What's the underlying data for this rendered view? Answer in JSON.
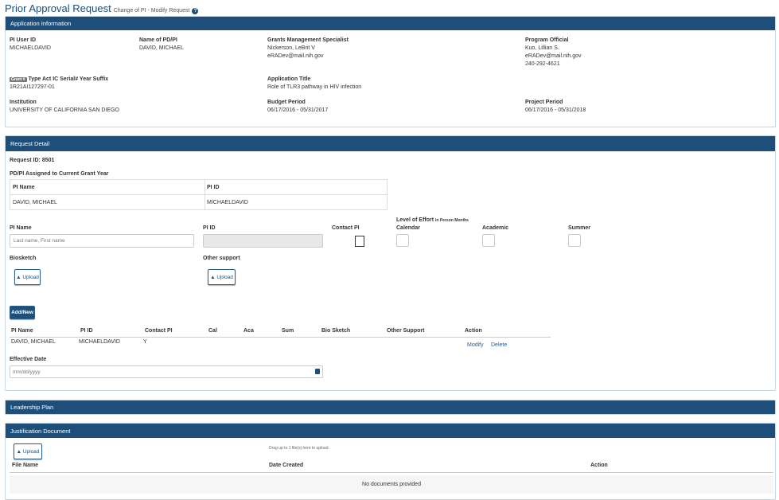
{
  "header": {
    "title": "Prior Approval Request",
    "subtitle": "Change of PI - Modify Request",
    "help_icon": "question-circle-icon"
  },
  "app_info": {
    "heading": "Application Information",
    "pi_user_id": {
      "label": "PI User ID",
      "value": "MICHAELDAVID"
    },
    "name_pdpi": {
      "label": "Name of PD/PI",
      "value": "DAVID, MICHAEL"
    },
    "gms": {
      "label": "Grants Management Specialist",
      "name": "Nickerson, LeBrit V",
      "email": "eRADev@mail.nih.gov"
    },
    "po": {
      "label": "Program Official",
      "name": "Kuo, Lillian S.",
      "email": "eRADev@mail.nih.gov",
      "phone": "240-292-4621"
    },
    "grant": {
      "badge": "Grant #",
      "label": "Type Act IC Serial# Year Suffix",
      "value": "1R21AI127297-01"
    },
    "app_title": {
      "label": "Application Title",
      "value": "Role of TLR3 pathway in HIV infection"
    },
    "institution": {
      "label": "Institution",
      "value": "UNIVERSITY OF CALIFORNIA SAN DIEGO"
    },
    "budget": {
      "label": "Budget Period",
      "value": "06/17/2016 - 05/31/2017"
    },
    "project": {
      "label": "Project Period",
      "value": "06/17/2016 - 05/31/2018"
    }
  },
  "request": {
    "heading": "Request Detail",
    "request_id": "Request ID: 8501",
    "assigned_label": "PD/PI Assigned to Current Grant Year",
    "assigned_table": {
      "headers": [
        "PI Name",
        "PI ID"
      ],
      "row": [
        "DAVID, MICHAEL",
        "MICHAELDAVID"
      ]
    },
    "form": {
      "pi_name_label": "PI Name",
      "pi_name_placeholder": "Last name, First name",
      "pi_id_label": "PI ID",
      "contact_pi_label": "Contact PI",
      "loe_label": "Level of Effort",
      "loe_unit": "in Person Months",
      "calendar": "Calendar",
      "academic": "Academic",
      "summer": "Summer",
      "biosketch": "Biosketch",
      "other_support": "Other support",
      "upload": "Upload"
    },
    "add_new": "Add/New",
    "pi_table": {
      "headers": [
        "PI Name",
        "PI ID",
        "Contact PI",
        "Cal",
        "Aca",
        "Sum",
        "Bio Sketch",
        "Other Support",
        "Action"
      ],
      "rows": [
        {
          "name": "DAVID, MICHAEL",
          "id": "MICHAELDAVID",
          "contact": "Y",
          "modify": "Modify",
          "delete": "Delete"
        }
      ]
    },
    "effective_date_label": "Effective Date",
    "effective_date_placeholder": "mm/dd/yyyy"
  },
  "leadership": {
    "heading": "Leadership Plan"
  },
  "justification": {
    "heading": "Justification Document",
    "upload": "Upload",
    "drag_hint": "Drag up to 1 file(s) here to upload.",
    "headers": [
      "File Name",
      "Date Created",
      "Action"
    ],
    "empty": "No documents provided"
  },
  "colors": {
    "primary": "#1d4f7a"
  }
}
